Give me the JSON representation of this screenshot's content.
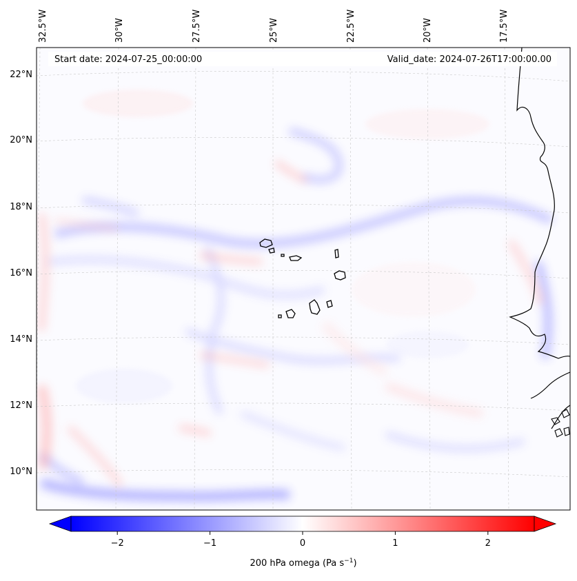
{
  "map": {
    "start_date": "Start date: 2024-07-25_00:00:00",
    "valid_date": "Valid_date: 2024-07-26T17:00:00.00",
    "lon_labels": [
      "32.5°W",
      "30°W",
      "27.5°W",
      "25°W",
      "22.5°W",
      "20°W",
      "17.5°W"
    ],
    "lat_labels": [
      "22°N",
      "20°N",
      "18°N",
      "16°N",
      "14°N",
      "12°N",
      "10°N"
    ]
  },
  "colorbar": {
    "label_prefix": "200 hPa omega (Pa s",
    "label_exp": "−1",
    "label_suffix": ")",
    "tick_labels": [
      "−2",
      "−1",
      "0",
      "1",
      "2"
    ],
    "tick_values": [
      -2,
      -1,
      0,
      1,
      2
    ],
    "range": [
      -2.5,
      2.5
    ],
    "colormap": "bwr",
    "negative_color": "#0000ff",
    "zero_color": "#ffffff",
    "positive_color": "#ff0000"
  },
  "chart_data": {
    "type": "heatmap",
    "variable": "200 hPa omega",
    "units": "Pa s^-1",
    "lon_range": [
      -33,
      -16.5
    ],
    "lat_range": [
      9,
      22.5
    ],
    "value_range": [
      -2.5,
      2.5
    ],
    "gridlines": true
  }
}
